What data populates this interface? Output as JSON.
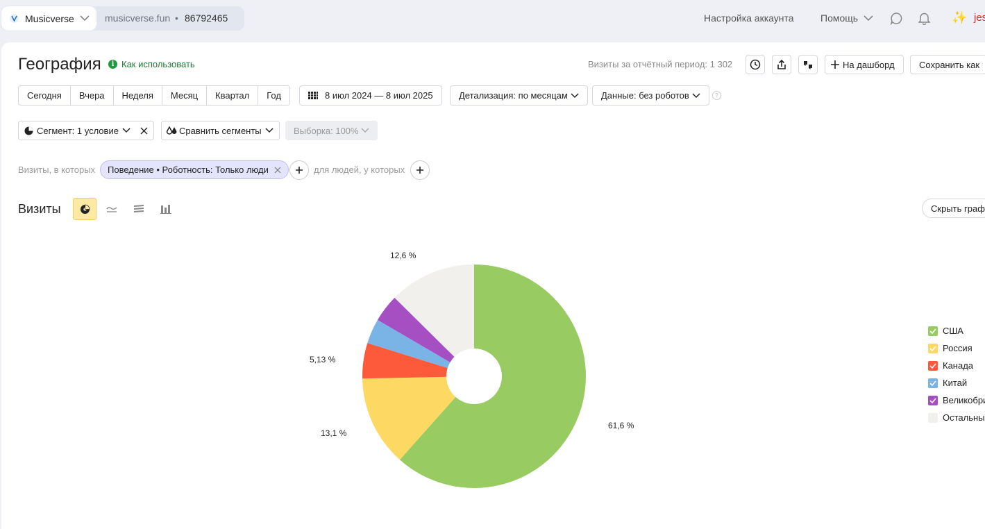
{
  "topbar": {
    "counter_name": "Musicverse",
    "counter_site": "musicverse.fun",
    "counter_sep": "•",
    "counter_id": "86792465",
    "account_settings": "Настройка аккаунта",
    "help": "Помощь",
    "user": "jes"
  },
  "header": {
    "title": "География",
    "howto": "Как использовать",
    "visits_period": "Визиты за отчётный период: 1 302",
    "dashboard_label": "На дашборд",
    "save_as_label": "Сохранить как"
  },
  "period": {
    "items": [
      "Сегодня",
      "Вчера",
      "Неделя",
      "Месяц",
      "Квартал",
      "Год"
    ],
    "date_range": "8 июл 2024 — 8 июл 2025",
    "detail": "Детализация: по месяцам",
    "data": "Данные: без роботов"
  },
  "segment": {
    "label": "Сегмент: 1 условие",
    "compare": "Сравнить сегменты",
    "sample": "Выборка: 100%"
  },
  "filters": {
    "prefix": "Визиты, в которых",
    "chip": "Поведение • Роботность: Только люди",
    "people": "для людей, у которых"
  },
  "chart": {
    "title": "Визиты",
    "hide_label": "Скрыть граф"
  },
  "chart_data": {
    "type": "pie",
    "categories": [
      "США",
      "Россия",
      "Канада",
      "Китай",
      "Великобри",
      "Остальные"
    ],
    "values": [
      61.6,
      13.1,
      5.13,
      3.6,
      4.0,
      12.6
    ],
    "labels": [
      "61,6 %",
      "13,1 %",
      "5,13 %",
      "",
      "",
      "12,6 %"
    ],
    "colors": [
      "#98cc62",
      "#fdd862",
      "#fc5a3b",
      "#7ab4e6",
      "#a54fc2",
      "#f1f0ec"
    ]
  },
  "colors": {
    "accent_green": "#1c9a3c",
    "active_chart_btn": "#fde9a6",
    "chip_bg": "#e4e4fc"
  },
  "icons": [
    "calendar-grid-icon",
    "clock-icon",
    "share-icon",
    "thumbs-icon",
    "plus-icon",
    "pie-segment-icon",
    "compare-icon",
    "pie-chart-icon",
    "line-chart-icon",
    "area-chart-icon",
    "bar-chart-icon",
    "chat-icon",
    "bell-icon",
    "sparkle-icon"
  ]
}
